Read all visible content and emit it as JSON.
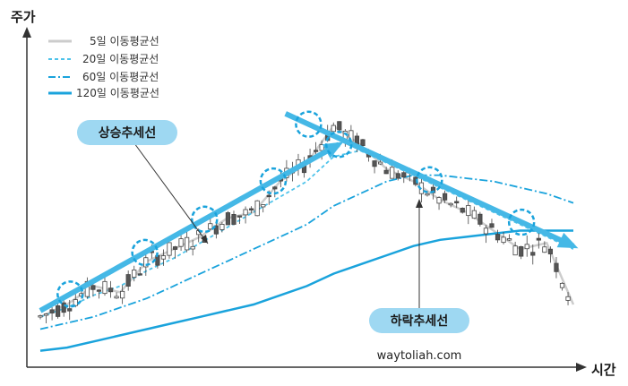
{
  "chart_data": {
    "type": "line",
    "ylabel": "주가",
    "xlabel": "시간",
    "legend": [
      {
        "name": "5일 이동평균선",
        "color": "#cccccc",
        "style": "solid"
      },
      {
        "name": "20일 이동평균선",
        "color": "#4fc3ea",
        "style": "dashed"
      },
      {
        "name": "60일 이동평균선",
        "color": "#1aa3dc",
        "style": "dashdot"
      },
      {
        "name": "120일 이동평균선",
        "color": "#1aa3dc",
        "style": "solid-thick"
      }
    ],
    "legend_placement": "top-left",
    "annotations": {
      "uptrend": "상승추세선",
      "downtrend": "하락추세선"
    },
    "watermark": "waytoliah.com",
    "x": [
      0,
      5,
      10,
      15,
      20,
      25,
      30,
      35,
      40,
      45,
      50,
      55,
      60,
      65,
      70,
      75,
      80,
      85,
      90,
      95,
      100
    ],
    "series": [
      {
        "name": "5일 이동평균선",
        "values": [
          12,
          16,
          22,
          20,
          30,
          34,
          38,
          44,
          46,
          56,
          62,
          74,
          68,
          60,
          56,
          50,
          46,
          40,
          34,
          36,
          16
        ]
      },
      {
        "name": "20일 이동평균선",
        "values": [
          12,
          15,
          19,
          22,
          27,
          31,
          36,
          41,
          46,
          51,
          56,
          64,
          66,
          62,
          58,
          54,
          50,
          46,
          42,
          38,
          34
        ]
      },
      {
        "name": "60일 이동평균선",
        "values": [
          8,
          10,
          12,
          15,
          18,
          22,
          26,
          30,
          34,
          38,
          42,
          48,
          52,
          56,
          58,
          58,
          57,
          56,
          54,
          52,
          49
        ]
      },
      {
        "name": "120일 이동평균선",
        "values": [
          1,
          2,
          4,
          6,
          8,
          10,
          12,
          14,
          16,
          19,
          22,
          26,
          29,
          32,
          35,
          37,
          38,
          39,
          40,
          40,
          40
        ]
      }
    ],
    "trendlines": [
      {
        "name": "상승추세선",
        "from": [
          0,
          14
        ],
        "to": [
          56,
          68
        ]
      },
      {
        "name": "하락추세선",
        "from": [
          46,
          78
        ],
        "to": [
          100,
          35
        ]
      }
    ],
    "grid": false
  }
}
